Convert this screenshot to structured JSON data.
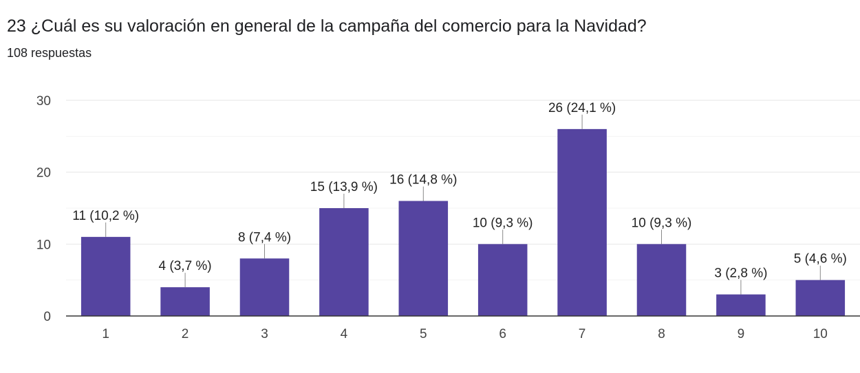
{
  "header": {
    "question": "23 ¿Cuál es su valoración en general de la campaña del comercio para la Navidad?",
    "responses": "108 respuestas"
  },
  "chart_data": {
    "type": "bar",
    "categories": [
      "1",
      "2",
      "3",
      "4",
      "5",
      "6",
      "7",
      "8",
      "9",
      "10"
    ],
    "values": [
      11,
      4,
      8,
      15,
      16,
      10,
      26,
      10,
      3,
      5
    ],
    "data_labels": [
      "11 (10,2 %)",
      "4 (3,7 %)",
      "8 (7,4 %)",
      "15 (13,9 %)",
      "16 (14,8 %)",
      "10 (9,3 %)",
      "26 (24,1 %)",
      "10 (9,3 %)",
      "3 (2,8 %)",
      "5 (4,6 %)"
    ],
    "ylim": [
      0,
      30
    ],
    "yticks": [
      0,
      10,
      20,
      30
    ],
    "grid": true,
    "bar_color": "#5544a0"
  }
}
